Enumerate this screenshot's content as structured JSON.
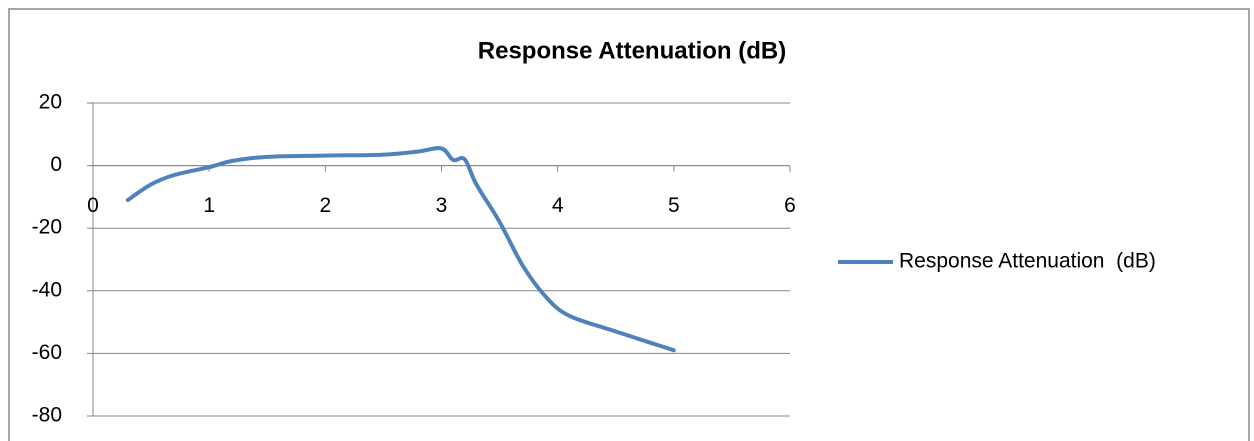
{
  "chart_data": {
    "type": "line",
    "title": "Response Attenuation  (dB)",
    "x": [
      0.3,
      0.5,
      0.7,
      1,
      1.2,
      1.5,
      2,
      2.5,
      2.8,
      3,
      3.1,
      3.2,
      3.3,
      3.5,
      3.7,
      3.9,
      4.1,
      4.5,
      5
    ],
    "series": [
      {
        "name": "Response Attenuation  (dB)",
        "color": "#4f81bd",
        "values": [
          -11,
          -6,
          -3,
          -0.5,
          1.5,
          2.8,
          3.2,
          3.5,
          4.5,
          5.5,
          1.8,
          2,
          -6,
          -18,
          -32,
          -42,
          -48,
          -53,
          -59
        ]
      }
    ],
    "xlim": [
      0,
      6
    ],
    "xticks": [
      0,
      1,
      2,
      3,
      4,
      5,
      6
    ],
    "ylim": [
      -80,
      20
    ],
    "yticks": [
      -80,
      -60,
      -40,
      -20,
      0,
      20
    ],
    "grid": true,
    "legend": "right"
  }
}
